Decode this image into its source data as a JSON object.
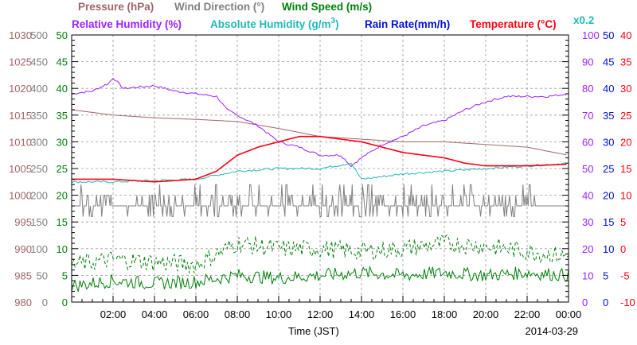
{
  "colors": {
    "pressure": "#a0646a",
    "wind_direction": "#808080",
    "wind_speed": "#00800a",
    "humidity": "#a020ff",
    "abs_humidity": "#20b8b8",
    "rain": "#0010e0",
    "temperature": "#ff0010",
    "grid": "#9a9a9a",
    "frame": "#000000"
  },
  "titles": {
    "pressure": "Pressure (hPa)",
    "wind_direction": "Wind Direction (°)",
    "wind_speed": "Wind Speed (m/s)",
    "humidity": "Relative Humidity (%)",
    "abs_humidity_base": "Absolute Humidity (g/m",
    "abs_humidity_sup": "3",
    "abs_humidity_end": ")",
    "rain": "Rain Rate(mm/h)",
    "temperature": "Temperature (°C)",
    "abs_scale": "x0.2"
  },
  "xlabel": "Time (JST)",
  "date": "2014-03-29",
  "chart_data": {
    "type": "line",
    "grid": true,
    "x_unit": "hour (JST)",
    "xlim": [
      0,
      24
    ],
    "x_ticks": [
      "02:00",
      "04:00",
      "06:00",
      "08:00",
      "10:00",
      "12:00",
      "14:00",
      "16:00",
      "18:00",
      "20:00",
      "22:00",
      "00:00"
    ],
    "axes": {
      "pressure": {
        "lim": [
          980,
          1030
        ],
        "ticks": [
          "980",
          "985",
          "990",
          "995",
          "1000",
          "1005",
          "1010",
          "1015",
          "1020",
          "1025",
          "1030"
        ]
      },
      "wind_direction": {
        "lim": [
          0,
          500
        ],
        "ticks": [
          "0",
          "50",
          "100",
          "150",
          "200",
          "250",
          "300",
          "350",
          "400",
          "450",
          "500"
        ]
      },
      "wind_speed": {
        "lim": [
          0,
          50
        ],
        "ticks": [
          "0",
          "5",
          "10",
          "15",
          "20",
          "25",
          "30",
          "35",
          "40",
          "45",
          "50"
        ]
      },
      "humidity": {
        "lim": [
          0,
          100
        ],
        "ticks": [
          "0",
          "10",
          "20",
          "30",
          "40",
          "50",
          "60",
          "70",
          "80",
          "90",
          "100"
        ]
      },
      "rain": {
        "lim": [
          0,
          50
        ],
        "ticks": [
          "0",
          "5",
          "10",
          "15",
          "20",
          "25",
          "30",
          "35",
          "40",
          "45",
          "50"
        ]
      },
      "temperature": {
        "lim": [
          -10,
          40
        ],
        "ticks": [
          "-10",
          "-5",
          "0",
          "5",
          "10",
          "15",
          "20",
          "25",
          "30",
          "35",
          "40"
        ]
      }
    },
    "series": [
      {
        "name": "Pressure (hPa)",
        "axis": "pressure",
        "color": "#a0646a",
        "style": "solid",
        "x": [
          0,
          2,
          4,
          6,
          8,
          10,
          12,
          14,
          16,
          18,
          20,
          22,
          24
        ],
        "y": [
          1016,
          1015,
          1014.5,
          1014.2,
          1013.8,
          1012.5,
          1011,
          1010.5,
          1010,
          1010,
          1009.5,
          1009,
          1007.5
        ]
      },
      {
        "name": "Relative Humidity (%)",
        "axis": "humidity",
        "color": "#a020ff",
        "style": "solid",
        "x": [
          0,
          1,
          1.8,
          2,
          2.5,
          4,
          5,
          6,
          7,
          7.5,
          8,
          9,
          10,
          11,
          12,
          13,
          13.5,
          14,
          15,
          16,
          17,
          18,
          19,
          20,
          21,
          22,
          23,
          24
        ],
        "y": [
          78,
          79,
          82,
          84,
          80,
          81,
          79,
          78,
          77,
          72,
          70,
          66,
          60,
          58,
          55,
          55,
          51,
          54,
          59,
          62,
          66,
          68,
          72,
          75,
          77,
          77,
          77,
          78
        ]
      },
      {
        "name": "Absolute Humidity (g/m3) x0.2",
        "axis": "humidity",
        "color": "#20b8b8",
        "style": "solid",
        "x": [
          0,
          2,
          4,
          6,
          8,
          10,
          12,
          13.5,
          14,
          16,
          18,
          20,
          22,
          24
        ],
        "y": [
          45,
          45,
          45.5,
          46,
          49,
          50,
          50,
          52,
          46,
          48,
          49,
          50,
          51,
          52
        ]
      },
      {
        "name": "Rain Rate(mm/h)",
        "axis": "rain",
        "color": "#0010e0",
        "style": "solid",
        "x": [
          0,
          24
        ],
        "y": [
          0,
          0
        ]
      },
      {
        "name": "Temperature (°C)",
        "axis": "temperature",
        "color": "#ff0010",
        "style": "solid",
        "x": [
          0,
          2,
          4,
          6,
          7,
          8,
          9,
          10,
          11,
          12,
          13,
          14,
          15,
          16,
          17,
          18,
          19,
          20,
          22,
          24
        ],
        "y": [
          13,
          13,
          12.5,
          13,
          14.5,
          17.5,
          19,
          20,
          21,
          21,
          20.5,
          20,
          19,
          18,
          17.5,
          17,
          16,
          15.5,
          15.5,
          15.8
        ]
      },
      {
        "name": "Wind Direction (°)",
        "axis": "wind_direction",
        "color": "#808080",
        "style": "solid",
        "x": [
          0,
          24
        ],
        "y": [
          180,
          180
        ]
      },
      {
        "name": "Wind Speed mean (m/s)",
        "axis": "wind_speed",
        "color": "#00800a",
        "style": "solid",
        "x": [
          0,
          2,
          4,
          6,
          8,
          10,
          12,
          14,
          16,
          18,
          20,
          22,
          24
        ],
        "y": [
          3,
          4,
          3.5,
          3.8,
          5,
          4.5,
          5,
          5.5,
          5,
          5.5,
          5,
          5.5,
          5
        ]
      },
      {
        "name": "Wind Speed max (m/s)",
        "axis": "wind_speed",
        "color": "#00800a",
        "style": "dashed",
        "x": [
          0,
          2,
          4,
          6,
          8,
          10,
          12,
          14,
          16,
          18,
          20,
          22,
          24
        ],
        "y": [
          7,
          8,
          7.5,
          7,
          11,
          10,
          10,
          9.5,
          10,
          11,
          10.5,
          9.5,
          8.5
        ]
      }
    ]
  }
}
